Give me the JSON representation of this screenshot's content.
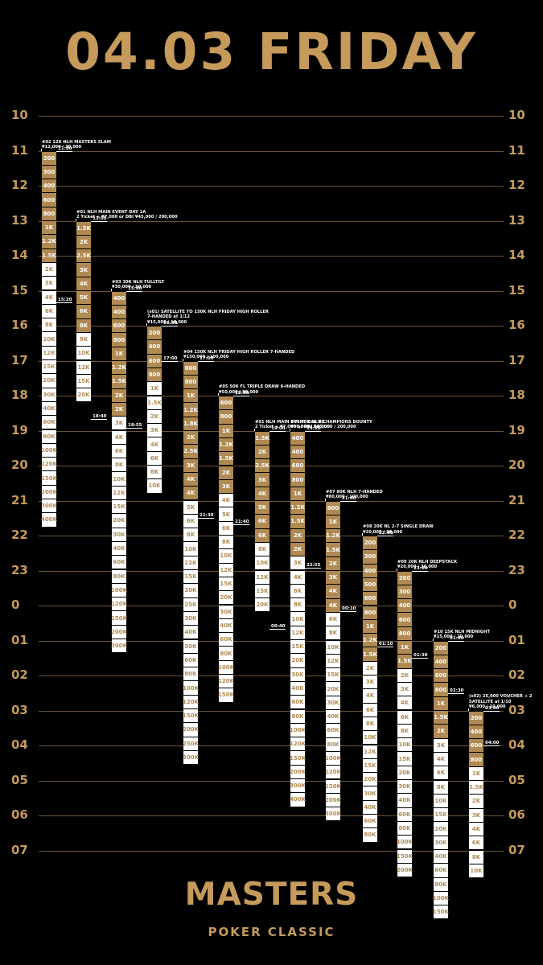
{
  "header": {
    "title": "04.03 FRIDAY"
  },
  "footer": {
    "brand": "MASTERS",
    "subtitle": "POKER CLASSIC"
  },
  "colors": {
    "gold": "#b08a52",
    "title_gold": "#c59a5a",
    "background": "#000000"
  },
  "hours": [
    "10",
    "11",
    "12",
    "13",
    "14",
    "15",
    "16",
    "17",
    "18",
    "19",
    "20",
    "21",
    "22",
    "23",
    "0",
    "01",
    "02",
    "03",
    "04",
    "05",
    "06",
    "07"
  ],
  "events": [
    {
      "id": "ev02",
      "title": [
        "#02 12K NLH MASTERS SLAM",
        "¥12,000 / 30,000"
      ],
      "start": 11.0,
      "marks": [
        {
          "t": "11:00",
          "at": 11.0
        },
        {
          "t": "15:20",
          "at": 15.33
        }
      ],
      "segments": [
        [
          "200",
          "g"
        ],
        [
          "300",
          "g"
        ],
        [
          "400",
          "g"
        ],
        [
          "600",
          "g"
        ],
        [
          "800",
          "g"
        ],
        [
          "1K",
          "g"
        ],
        [
          "1.2K",
          "g"
        ],
        [
          "1.5K",
          "g"
        ],
        [
          "2K",
          "w"
        ],
        [
          "3K",
          "w"
        ],
        [
          "4K",
          "w"
        ],
        [
          "6K",
          "w"
        ],
        [
          "8K",
          "w"
        ],
        [
          "10K",
          "w"
        ],
        [
          "12K",
          "w"
        ],
        [
          "15K",
          "w"
        ],
        [
          "20K",
          "w"
        ],
        [
          "30K",
          "w"
        ],
        [
          "40K",
          "w"
        ],
        [
          "60K",
          "w"
        ],
        [
          "80K",
          "w"
        ],
        [
          "100K",
          "w"
        ],
        [
          "120K",
          "w"
        ],
        [
          "150K",
          "w"
        ],
        [
          "200K",
          "w"
        ],
        [
          "300K",
          "w"
        ],
        [
          "400K",
          "w"
        ]
      ]
    },
    {
      "id": "ev01a",
      "title": [
        "#01 NLH MAIN EVENT DAY 1A",
        "2 Ticket + ¥7,000 or DBI ¥45,000 / 200,000"
      ],
      "start": 13.0,
      "marks": [
        {
          "t": "13:00",
          "at": 13.0
        },
        {
          "t": "18:40",
          "at": 18.67
        }
      ],
      "segments": [
        [
          "1.5K",
          "g"
        ],
        [
          "2K",
          "g"
        ],
        [
          "2.5K",
          "g"
        ],
        [
          "3K",
          "g"
        ],
        [
          "4K",
          "g"
        ],
        [
          "5K",
          "g"
        ],
        [
          "6K",
          "g"
        ],
        [
          "8K",
          "g"
        ],
        [
          "8K",
          "w"
        ],
        [
          "10K",
          "w"
        ],
        [
          "12K",
          "w"
        ],
        [
          "15K",
          "w"
        ],
        [
          "20K",
          "w"
        ]
      ]
    },
    {
      "id": "ev03",
      "title": [
        "#03 30K NLH FULLTILT",
        "¥30,000 / 50,000"
      ],
      "start": 15.0,
      "marks": [
        {
          "t": "15:00",
          "at": 15.0
        },
        {
          "t": "18:55",
          "at": 18.92
        }
      ],
      "segments": [
        [
          "400",
          "g"
        ],
        [
          "400",
          "g"
        ],
        [
          "600",
          "g"
        ],
        [
          "800",
          "g"
        ],
        [
          "1K",
          "g"
        ],
        [
          "1.2K",
          "g"
        ],
        [
          "1.5K",
          "g"
        ],
        [
          "2K",
          "g"
        ],
        [
          "2K",
          "g"
        ],
        [
          "3K",
          "w"
        ],
        [
          "4K",
          "w"
        ],
        [
          "6K",
          "w"
        ],
        [
          "8K",
          "w"
        ],
        [
          "10K",
          "w"
        ],
        [
          "12K",
          "w"
        ],
        [
          "15K",
          "w"
        ],
        [
          "20K",
          "w"
        ],
        [
          "30K",
          "w"
        ],
        [
          "40K",
          "w"
        ],
        [
          "60K",
          "w"
        ],
        [
          "80K",
          "w"
        ],
        [
          "100K",
          "w"
        ],
        [
          "120K",
          "w"
        ],
        [
          "150K",
          "w"
        ],
        [
          "200K",
          "w"
        ],
        [
          "300K",
          "w"
        ]
      ]
    },
    {
      "id": "evs01",
      "title": [
        "(s01) SATELLITE TO 150K NLH FRIDAY HIGH ROLLER",
        "7-HANDED at 1/12",
        "¥15,000 / 10,000"
      ],
      "start": 16.0,
      "marks": [
        {
          "t": "16:00",
          "at": 16.0
        },
        {
          "t": "17:00",
          "at": 17.0
        }
      ],
      "segments": [
        [
          "200",
          "g"
        ],
        [
          "400",
          "g"
        ],
        [
          "600",
          "g"
        ],
        [
          "800",
          "g"
        ],
        [
          "1K",
          "w"
        ],
        [
          "1.5K",
          "w"
        ],
        [
          "2K",
          "w"
        ],
        [
          "3K",
          "w"
        ],
        [
          "4K",
          "w"
        ],
        [
          "6K",
          "w"
        ],
        [
          "8K",
          "w"
        ],
        [
          "10K",
          "w"
        ]
      ]
    },
    {
      "id": "ev04",
      "title": [
        "#04 150K NLH FRIDAY HIGH ROLLER 7-HANDED",
        "¥150,000 / 100,000"
      ],
      "start": 17.0,
      "marks": [
        {
          "t": "17:00",
          "at": 17.0
        },
        {
          "t": "21:30",
          "at": 21.5
        }
      ],
      "segments": [
        [
          "600",
          "g"
        ],
        [
          "800",
          "g"
        ],
        [
          "1K",
          "g"
        ],
        [
          "1.2K",
          "g"
        ],
        [
          "1.8K",
          "g"
        ],
        [
          "2K",
          "g"
        ],
        [
          "2.5K",
          "g"
        ],
        [
          "3K",
          "g"
        ],
        [
          "4K",
          "g"
        ],
        [
          "4K",
          "g"
        ],
        [
          "5K",
          "w"
        ],
        [
          "6K",
          "w"
        ],
        [
          "8K",
          "w"
        ],
        [
          "10K",
          "w"
        ],
        [
          "12K",
          "w"
        ],
        [
          "15K",
          "w"
        ],
        [
          "20K",
          "w"
        ],
        [
          "25K",
          "w"
        ],
        [
          "30K",
          "w"
        ],
        [
          "40K",
          "w"
        ],
        [
          "50K",
          "w"
        ],
        [
          "60K",
          "w"
        ],
        [
          "80K",
          "w"
        ],
        [
          "100K",
          "w"
        ],
        [
          "120K",
          "w"
        ],
        [
          "150K",
          "w"
        ],
        [
          "200K",
          "w"
        ],
        [
          "250K",
          "w"
        ],
        [
          "300K",
          "w"
        ]
      ]
    },
    {
      "id": "ev05",
      "title": [
        "#05 50K FL TRIPLE DRAW 6-HANDED",
        "¥50,000 / 50,000"
      ],
      "start": 18.0,
      "marks": [
        {
          "t": "18:00",
          "at": 18.0
        },
        {
          "t": "21:40",
          "at": 21.67
        }
      ],
      "segments": [
        [
          "600",
          "g"
        ],
        [
          "800",
          "g"
        ],
        [
          "1K",
          "g"
        ],
        [
          "1.2K",
          "g"
        ],
        [
          "1.5K",
          "g"
        ],
        [
          "2K",
          "g"
        ],
        [
          "3K",
          "g"
        ],
        [
          "4K",
          "w"
        ],
        [
          "5K",
          "w"
        ],
        [
          "6K",
          "w"
        ],
        [
          "8K",
          "w"
        ],
        [
          "10K",
          "w"
        ],
        [
          "12K",
          "w"
        ],
        [
          "15K",
          "w"
        ],
        [
          "20K",
          "w"
        ],
        [
          "30K",
          "w"
        ],
        [
          "40K",
          "w"
        ],
        [
          "60K",
          "w"
        ],
        [
          "80K",
          "w"
        ],
        [
          "100K",
          "w"
        ],
        [
          "120K",
          "w"
        ],
        [
          "150K",
          "w"
        ]
      ]
    },
    {
      "id": "ev01b",
      "title": [
        "#01 NLH MAIN EVENT DAY 1B",
        "2 Ticket + ¥7,000 or DBI ¥45,000 / 200,000"
      ],
      "start": 19.0,
      "marks": [
        {
          "t": "19:00",
          "at": 19.0
        },
        {
          "t": "00:40",
          "at": 24.67
        }
      ],
      "segments": [
        [
          "1.5K",
          "g"
        ],
        [
          "2K",
          "g"
        ],
        [
          "2.5K",
          "g"
        ],
        [
          "3K",
          "g"
        ],
        [
          "4K",
          "g"
        ],
        [
          "5K",
          "g"
        ],
        [
          "6K",
          "g"
        ],
        [
          "6K",
          "g"
        ],
        [
          "8K",
          "w"
        ],
        [
          "10K",
          "w"
        ],
        [
          "12K",
          "w"
        ],
        [
          "15K",
          "w"
        ],
        [
          "20K",
          "w"
        ]
      ]
    },
    {
      "id": "ev06",
      "title": [
        "#06 30K NLH CHAMPIONS BOUNTY",
        "¥30,000 / 50,000"
      ],
      "start": 19.0,
      "marks": [
        {
          "t": "19:00",
          "at": 19.0
        },
        {
          "t": "22:55",
          "at": 22.92
        }
      ],
      "segments": [
        [
          "400",
          "g"
        ],
        [
          "400",
          "g"
        ],
        [
          "600",
          "g"
        ],
        [
          "800",
          "g"
        ],
        [
          "1K",
          "g"
        ],
        [
          "1.2K",
          "g"
        ],
        [
          "1.5K",
          "g"
        ],
        [
          "2K",
          "g"
        ],
        [
          "2K",
          "g"
        ],
        [
          "3K",
          "w"
        ],
        [
          "4K",
          "w"
        ],
        [
          "6K",
          "w"
        ],
        [
          "8K",
          "w"
        ],
        [
          "10K",
          "w"
        ],
        [
          "12K",
          "w"
        ],
        [
          "15K",
          "w"
        ],
        [
          "20K",
          "w"
        ],
        [
          "30K",
          "w"
        ],
        [
          "40K",
          "w"
        ],
        [
          "60K",
          "w"
        ],
        [
          "80K",
          "w"
        ],
        [
          "100K",
          "w"
        ],
        [
          "120K",
          "w"
        ],
        [
          "150K",
          "w"
        ],
        [
          "200K",
          "w"
        ],
        [
          "300K",
          "w"
        ],
        [
          "400K",
          "w"
        ]
      ]
    },
    {
      "id": "ev07",
      "title": [
        "#07 80K NLH 7-HANDED",
        "¥80,000 / 100,000"
      ],
      "start": 21.0,
      "marks": [
        {
          "t": "21:00",
          "at": 21.0
        },
        {
          "t": "00:10",
          "at": 24.17
        }
      ],
      "segments": [
        [
          "800",
          "g"
        ],
        [
          "1K",
          "g"
        ],
        [
          "1.2K",
          "g"
        ],
        [
          "1.5K",
          "g"
        ],
        [
          "2K",
          "g"
        ],
        [
          "3K",
          "g"
        ],
        [
          "4K",
          "g"
        ],
        [
          "4K",
          "g"
        ],
        [
          "6K",
          "w"
        ],
        [
          "8K",
          "w"
        ],
        [
          "10K",
          "w"
        ],
        [
          "12K",
          "w"
        ],
        [
          "15K",
          "w"
        ],
        [
          "20K",
          "w"
        ],
        [
          "30K",
          "w"
        ],
        [
          "40K",
          "w"
        ],
        [
          "60K",
          "w"
        ],
        [
          "80K",
          "w"
        ],
        [
          "100K",
          "w"
        ],
        [
          "120K",
          "w"
        ],
        [
          "150K",
          "w"
        ],
        [
          "200K",
          "w"
        ],
        [
          "300K",
          "w"
        ]
      ]
    },
    {
      "id": "ev08",
      "title": [
        "#08 20K NL 2-7 SINGLE DRAW",
        "¥20,000 / 30,000"
      ],
      "start": 22.0,
      "marks": [
        {
          "t": "22:00",
          "at": 22.0
        },
        {
          "t": "01:10",
          "at": 25.17
        }
      ],
      "segments": [
        [
          "200",
          "g"
        ],
        [
          "300",
          "g"
        ],
        [
          "400",
          "g"
        ],
        [
          "500",
          "g"
        ],
        [
          "600",
          "g"
        ],
        [
          "800",
          "g"
        ],
        [
          "1K",
          "g"
        ],
        [
          "1.2K",
          "g"
        ],
        [
          "1.5K",
          "g"
        ],
        [
          "2K",
          "w"
        ],
        [
          "3K",
          "w"
        ],
        [
          "4K",
          "w"
        ],
        [
          "6K",
          "w"
        ],
        [
          "8K",
          "w"
        ],
        [
          "10K",
          "w"
        ],
        [
          "12K",
          "w"
        ],
        [
          "15K",
          "w"
        ],
        [
          "20K",
          "w"
        ],
        [
          "30K",
          "w"
        ],
        [
          "40K",
          "w"
        ],
        [
          "60K",
          "w"
        ],
        [
          "80K",
          "w"
        ]
      ]
    },
    {
      "id": "ev09",
      "title": [
        "#09 20K NLH DEEPSTACK",
        "¥20,000 / 30,000"
      ],
      "start": 23.0,
      "marks": [
        {
          "t": "23:00",
          "at": 23.0
        },
        {
          "t": "01:30",
          "at": 25.5
        }
      ],
      "segments": [
        [
          "200",
          "g"
        ],
        [
          "300",
          "g"
        ],
        [
          "400",
          "g"
        ],
        [
          "600",
          "g"
        ],
        [
          "800",
          "g"
        ],
        [
          "1K",
          "g"
        ],
        [
          "1.5K",
          "g"
        ],
        [
          "2K",
          "w"
        ],
        [
          "3K",
          "w"
        ],
        [
          "4K",
          "w"
        ],
        [
          "6K",
          "w"
        ],
        [
          "8K",
          "w"
        ],
        [
          "10K",
          "w"
        ],
        [
          "15K",
          "w"
        ],
        [
          "20K",
          "w"
        ],
        [
          "30K",
          "w"
        ],
        [
          "40K",
          "w"
        ],
        [
          "60K",
          "w"
        ],
        [
          "80K",
          "w"
        ],
        [
          "100K",
          "w"
        ],
        [
          "150K",
          "w"
        ],
        [
          "200K",
          "w"
        ]
      ]
    },
    {
      "id": "ev10",
      "title": [
        "#10 15K NLH MIDNIGHT",
        "¥15,000 / 20,000"
      ],
      "start": 25.0,
      "marks": [
        {
          "t": "01:00",
          "at": 25.0
        },
        {
          "t": "02:30",
          "at": 26.5
        }
      ],
      "segments": [
        [
          "200",
          "g"
        ],
        [
          "400",
          "g"
        ],
        [
          "600",
          "g"
        ],
        [
          "800",
          "g"
        ],
        [
          "1K",
          "g"
        ],
        [
          "1.5K",
          "g"
        ],
        [
          "2K",
          "g"
        ],
        [
          "3K",
          "w"
        ],
        [
          "4K",
          "w"
        ],
        [
          "6K",
          "w"
        ],
        [
          "8K",
          "w"
        ],
        [
          "10K",
          "w"
        ],
        [
          "15K",
          "w"
        ],
        [
          "20K",
          "w"
        ],
        [
          "30K",
          "w"
        ],
        [
          "40K",
          "w"
        ],
        [
          "60K",
          "w"
        ],
        [
          "80K",
          "w"
        ],
        [
          "100K",
          "w"
        ],
        [
          "150K",
          "w"
        ]
      ]
    },
    {
      "id": "evs02",
      "title": [
        "(s02) 25,000 VOUCHER + 2",
        "SATELLITE at 1/10",
        "¥6,000 / 10,000"
      ],
      "start": 27.0,
      "marks": [
        {
          "t": "03:00",
          "at": 27.0
        },
        {
          "t": "04:00",
          "at": 28.0
        }
      ],
      "segments": [
        [
          "200",
          "g"
        ],
        [
          "400",
          "g"
        ],
        [
          "600",
          "g"
        ],
        [
          "800",
          "g"
        ],
        [
          "1K",
          "w"
        ],
        [
          "1.5K",
          "w"
        ],
        [
          "2K",
          "w"
        ],
        [
          "3K",
          "w"
        ],
        [
          "4K",
          "w"
        ],
        [
          "6K",
          "w"
        ],
        [
          "8K",
          "w"
        ],
        [
          "10K",
          "w"
        ]
      ]
    }
  ]
}
